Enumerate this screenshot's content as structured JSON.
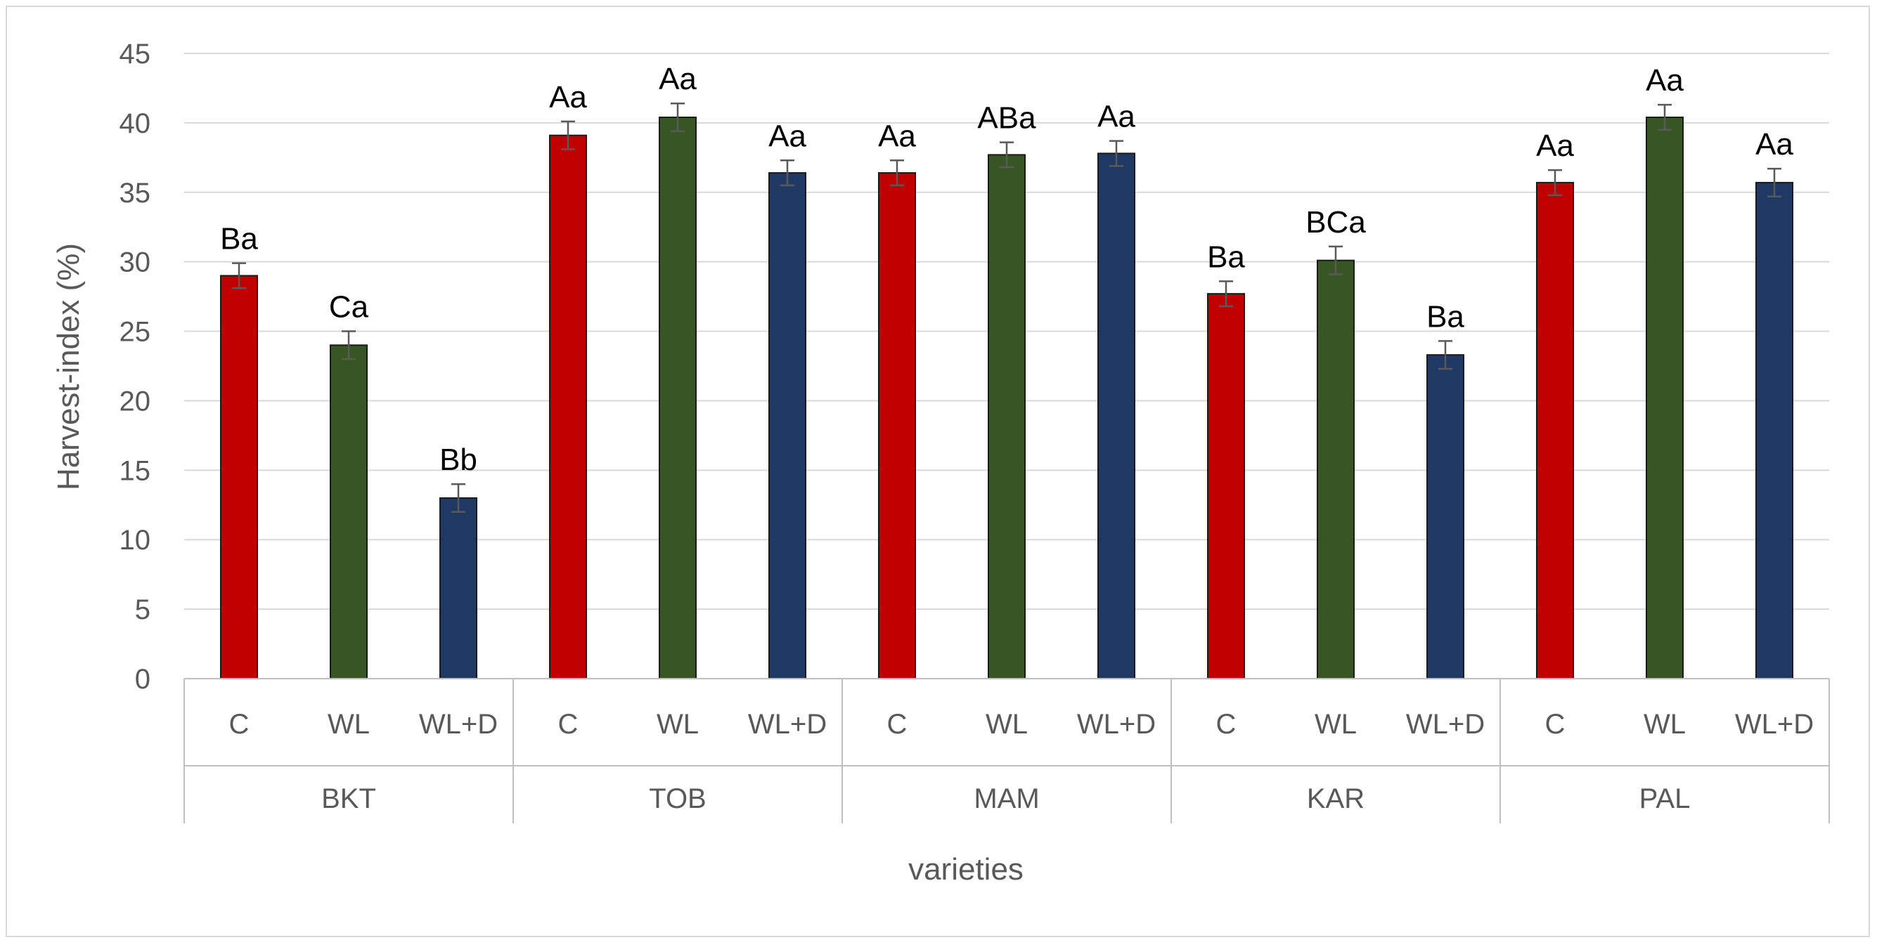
{
  "chart_data": {
    "type": "bar",
    "title": "",
    "xlabel": "varieties",
    "ylabel": "Harvest-index (%)",
    "ylim": [
      0,
      45
    ],
    "yticks": [
      0,
      5,
      10,
      15,
      20,
      25,
      30,
      35,
      40,
      45
    ],
    "grid": true,
    "groups": [
      "BKT",
      "TOB",
      "MAM",
      "KAR",
      "PAL"
    ],
    "treatments": [
      "C",
      "WL",
      "WL+D"
    ],
    "colors": {
      "C": "#c00000",
      "WL": "#375623",
      "WL+D": "#1f3864"
    },
    "bars": [
      {
        "group": "BKT",
        "treatment": "C",
        "value": 29.0,
        "error": 0.9,
        "label": "Ba"
      },
      {
        "group": "BKT",
        "treatment": "WL",
        "value": 24.0,
        "error": 1.0,
        "label": "Ca"
      },
      {
        "group": "BKT",
        "treatment": "WL+D",
        "value": 13.0,
        "error": 1.0,
        "label": "Bb"
      },
      {
        "group": "TOB",
        "treatment": "C",
        "value": 39.1,
        "error": 1.0,
        "label": "Aa"
      },
      {
        "group": "TOB",
        "treatment": "WL",
        "value": 40.4,
        "error": 1.0,
        "label": "Aa"
      },
      {
        "group": "TOB",
        "treatment": "WL+D",
        "value": 36.4,
        "error": 0.9,
        "label": "Aa"
      },
      {
        "group": "MAM",
        "treatment": "C",
        "value": 36.4,
        "error": 0.9,
        "label": "Aa"
      },
      {
        "group": "MAM",
        "treatment": "WL",
        "value": 37.7,
        "error": 0.9,
        "label": "ABa"
      },
      {
        "group": "MAM",
        "treatment": "WL+D",
        "value": 37.8,
        "error": 0.9,
        "label": "Aa"
      },
      {
        "group": "KAR",
        "treatment": "C",
        "value": 27.7,
        "error": 0.9,
        "label": "Ba"
      },
      {
        "group": "KAR",
        "treatment": "WL",
        "value": 30.1,
        "error": 1.0,
        "label": "BCa"
      },
      {
        "group": "KAR",
        "treatment": "WL+D",
        "value": 23.3,
        "error": 1.0,
        "label": "Ba"
      },
      {
        "group": "PAL",
        "treatment": "C",
        "value": 35.7,
        "error": 0.9,
        "label": "Aa"
      },
      {
        "group": "PAL",
        "treatment": "WL",
        "value": 40.4,
        "error": 0.9,
        "label": "Aa"
      },
      {
        "group": "PAL",
        "treatment": "WL+D",
        "value": 35.7,
        "error": 1.0,
        "label": "Aa"
      }
    ]
  }
}
